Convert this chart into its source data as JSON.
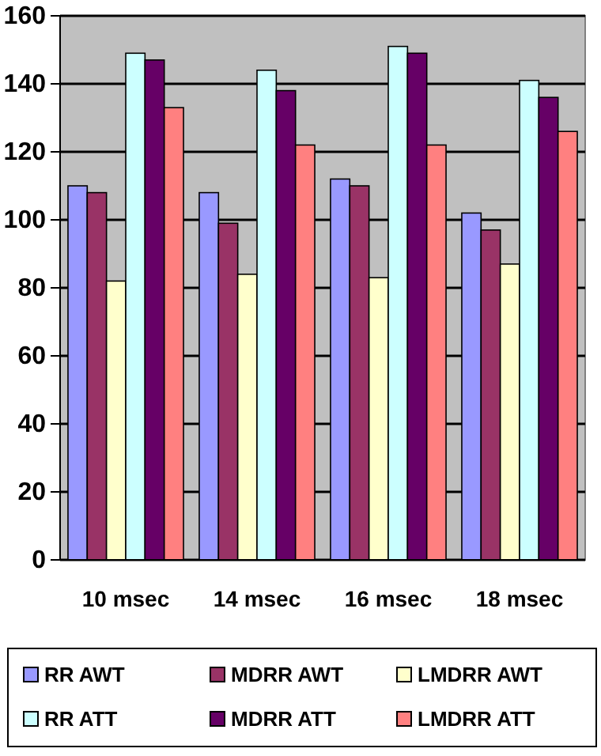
{
  "chart_data": {
    "type": "bar",
    "categories": [
      "10 msec",
      "14 msec",
      "16 msec",
      "18 msec"
    ],
    "series": [
      {
        "name": "RR AWT",
        "color": "#9999ff",
        "values": [
          110,
          108,
          112,
          102
        ]
      },
      {
        "name": "MDRR AWT",
        "color": "#993366",
        "values": [
          108,
          99,
          110,
          97
        ]
      },
      {
        "name": "LMDRR AWT",
        "color": "#ffffcc",
        "values": [
          82,
          84,
          83,
          87
        ]
      },
      {
        "name": "RR ATT",
        "color": "#ccffff",
        "values": [
          149,
          144,
          151,
          141
        ]
      },
      {
        "name": "MDRR ATT",
        "color": "#660066",
        "values": [
          147,
          138,
          149,
          136
        ]
      },
      {
        "name": "LMDRR ATT",
        "color": "#ff8080",
        "values": [
          133,
          122,
          122,
          126
        ]
      }
    ],
    "ylim": [
      0,
      160
    ],
    "yticks": [
      0,
      20,
      40,
      60,
      80,
      100,
      120,
      140,
      160
    ],
    "grid": "y",
    "legend": "bottom"
  }
}
